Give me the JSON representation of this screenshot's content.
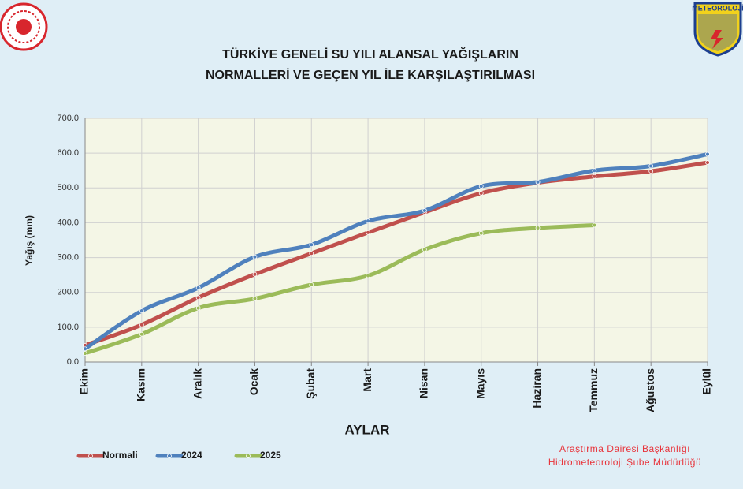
{
  "chart_data": {
    "type": "line",
    "title_lines": [
      "TÜRKİYE GENELİ SU YILI ALANSAL YAĞIŞLARIN",
      "NORMALLERİ VE GEÇEN YIL İLE KARŞILAŞTIRILMASI"
    ],
    "x_label": "AYLAR",
    "y_label": "Yağış (mm)",
    "categories": [
      "Ekim",
      "Kasım",
      "Aralık",
      "Ocak",
      "Şubat",
      "Mart",
      "Nisan",
      "Mayıs",
      "Haziran",
      "Temmuz",
      "Ağustos",
      "Eylül"
    ],
    "series": [
      {
        "name": "Normali",
        "color": "#c0504d",
        "values": [
          48,
          107,
          185,
          252,
          312,
          372,
          430,
          485,
          515,
          533,
          548,
          573
        ]
      },
      {
        "name": "2024",
        "color": "#4f81bd",
        "values": [
          38,
          147,
          213,
          302,
          337,
          405,
          435,
          505,
          517,
          550,
          563,
          597
        ]
      },
      {
        "name": "2025",
        "color": "#9bbb59",
        "values": [
          25,
          80,
          155,
          182,
          222,
          248,
          323,
          370,
          385,
          393,
          null,
          null
        ]
      }
    ],
    "ylim": [
      0,
      700
    ],
    "yticks": [
      {
        "value": 0,
        "label": "0.0"
      },
      {
        "value": 100,
        "label": "100.0"
      },
      {
        "value": 200,
        "label": "200.0"
      },
      {
        "value": 300,
        "label": "300.0"
      },
      {
        "value": 400,
        "label": "400.0"
      },
      {
        "value": 500,
        "label": "500.0"
      },
      {
        "value": 600,
        "label": "600.0"
      },
      {
        "value": 700,
        "label": "700.0"
      }
    ],
    "grid": true,
    "logo_text": "METEOROLOJİ",
    "footer_lines": [
      "Araştırma Dairesi Başkanlığı",
      "Hidrometeoroloji Şube Müdürlüğü"
    ]
  }
}
